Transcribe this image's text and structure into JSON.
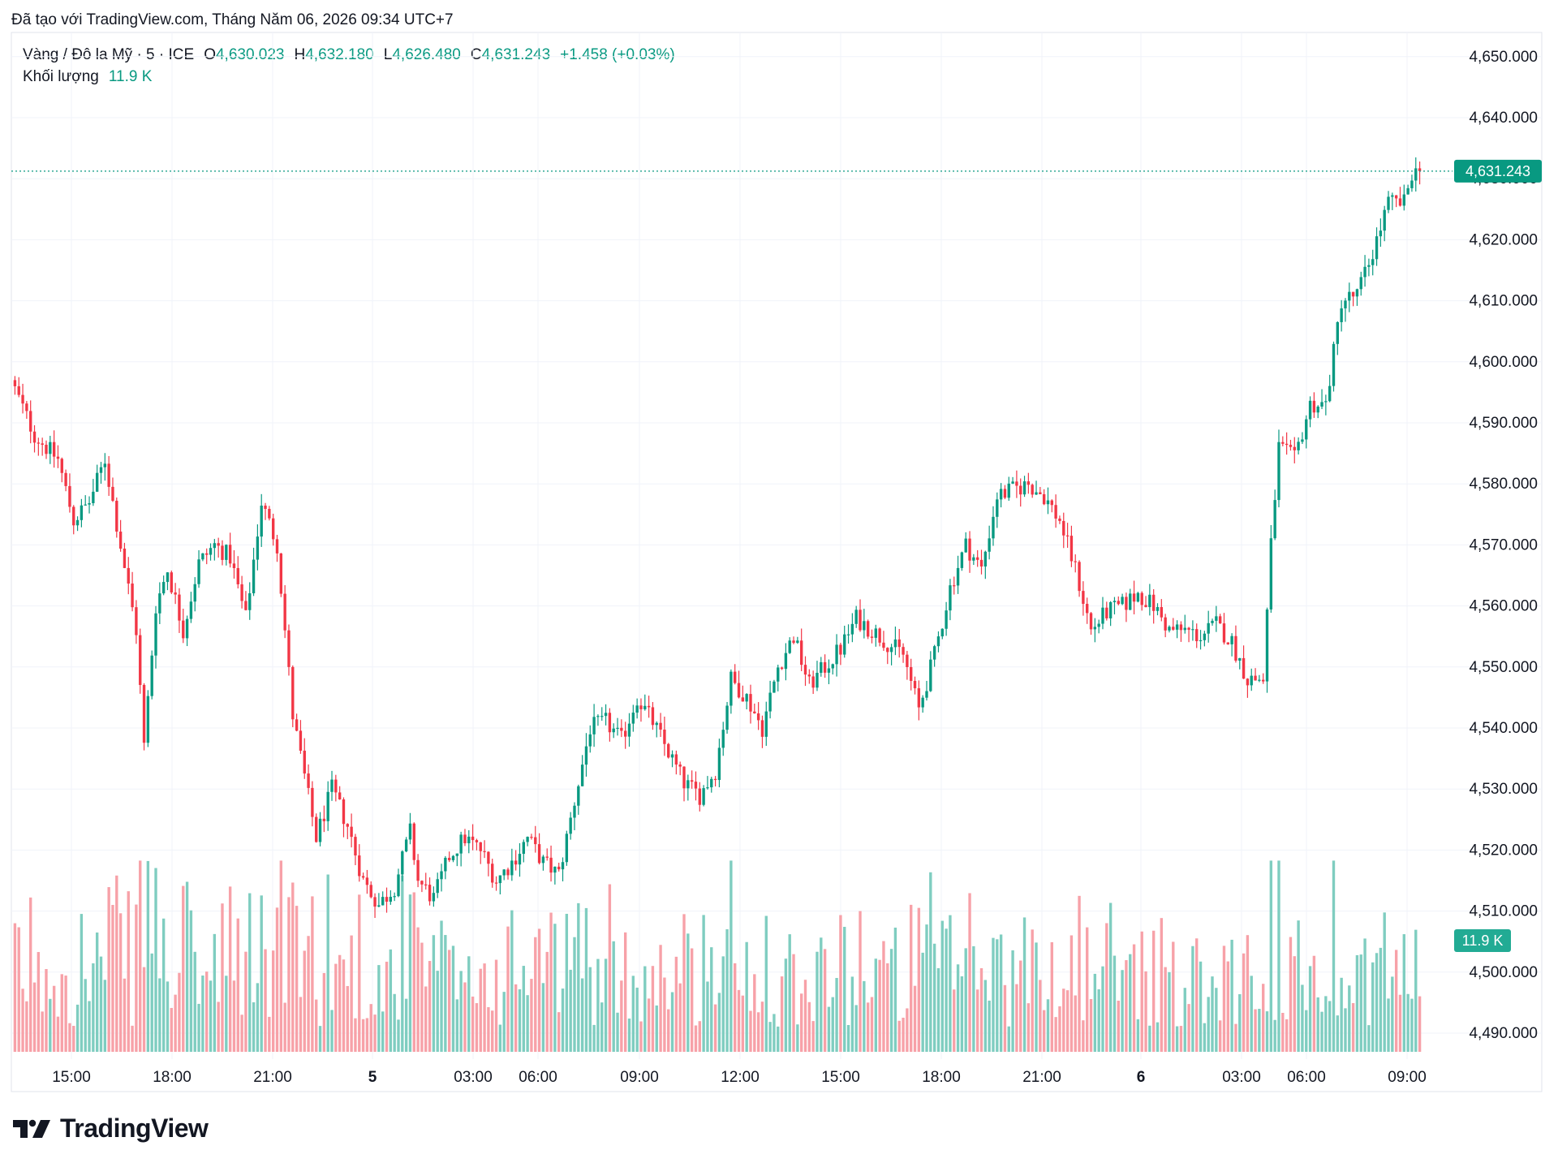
{
  "header": {
    "created_with": "Đã tạo với TradingView.com, Tháng Năm 06, 2026 09:34 UTC+7"
  },
  "legend": {
    "symbol": "Vàng / Đô la Mỹ · 5 · ICE",
    "open_label": "O",
    "open": "4,630.023",
    "high_label": "H",
    "high": "4,632.180",
    "low_label": "L",
    "low": "4,626.480",
    "close_label": "C",
    "close": "4,631.243",
    "change": "+1.458 (+0.03%)",
    "volume_label": "Khối lượng",
    "volume": "11.9 K"
  },
  "price_label": "4,631.243",
  "volume_label": "11.9 K",
  "brand": {
    "name": "TradingView"
  },
  "colors": {
    "up": "#089981",
    "down": "#f23645",
    "up_volume": "#7fcdc0",
    "down_volume": "#f7a1a8",
    "grid": "#f0f3fa",
    "text": "#131722"
  },
  "chart_data": {
    "type": "candlestick",
    "title": "Vàng / Đô la Mỹ · 5 · ICE",
    "y_ticks": [
      "4,490.000",
      "4,500.000",
      "4,510.000",
      "4,520.000",
      "4,530.000",
      "4,540.000",
      "4,550.000",
      "4,560.000",
      "4,570.000",
      "4,580.000",
      "4,590.000",
      "4,600.000",
      "4,610.000",
      "4,620.000",
      "4,630.000",
      "4,640.000",
      "4,650.000"
    ],
    "ylim": [
      4485,
      4653
    ],
    "x_ticks": [
      "15:00",
      "18:00",
      "21:00",
      "5",
      "03:00",
      "06:00",
      "09:00",
      "12:00",
      "15:00",
      "18:00",
      "21:00",
      "6",
      "03:00",
      "06:00",
      "09:00"
    ],
    "last_price": 4631.243,
    "last_volume": "11.9 K",
    "price_path": [
      [
        0,
        4597
      ],
      [
        6,
        4588
      ],
      [
        12,
        4584
      ],
      [
        16,
        4574
      ],
      [
        20,
        4577
      ],
      [
        24,
        4584
      ],
      [
        28,
        4570
      ],
      [
        32,
        4556
      ],
      [
        34,
        4537
      ],
      [
        37,
        4560
      ],
      [
        40,
        4566
      ],
      [
        44,
        4556
      ],
      [
        48,
        4567
      ],
      [
        52,
        4570
      ],
      [
        56,
        4568
      ],
      [
        60,
        4558
      ],
      [
        64,
        4577
      ],
      [
        68,
        4570
      ],
      [
        72,
        4542
      ],
      [
        78,
        4522
      ],
      [
        82,
        4530
      ],
      [
        86,
        4524
      ],
      [
        90,
        4515
      ],
      [
        94,
        4511
      ],
      [
        98,
        4514
      ],
      [
        102,
        4523
      ],
      [
        104,
        4515
      ],
      [
        108,
        4512
      ],
      [
        112,
        4519
      ],
      [
        116,
        4522
      ],
      [
        120,
        4520
      ],
      [
        124,
        4515
      ],
      [
        128,
        4518
      ],
      [
        132,
        4522
      ],
      [
        136,
        4518
      ],
      [
        140,
        4516
      ],
      [
        144,
        4528
      ],
      [
        148,
        4540
      ],
      [
        152,
        4541
      ],
      [
        156,
        4538
      ],
      [
        160,
        4545
      ],
      [
        164,
        4541
      ],
      [
        168,
        4536
      ],
      [
        172,
        4531
      ],
      [
        176,
        4529
      ],
      [
        180,
        4533
      ],
      [
        184,
        4548
      ],
      [
        188,
        4545
      ],
      [
        192,
        4540
      ],
      [
        196,
        4550
      ],
      [
        200,
        4555
      ],
      [
        204,
        4547
      ],
      [
        208,
        4550
      ],
      [
        212,
        4553
      ],
      [
        216,
        4558
      ],
      [
        220,
        4556
      ],
      [
        224,
        4554
      ],
      [
        228,
        4552
      ],
      [
        232,
        4543
      ],
      [
        236,
        4552
      ],
      [
        240,
        4563
      ],
      [
        244,
        4570
      ],
      [
        248,
        4566
      ],
      [
        252,
        4578
      ],
      [
        256,
        4579
      ],
      [
        260,
        4580
      ],
      [
        264,
        4578
      ],
      [
        268,
        4574
      ],
      [
        272,
        4566
      ],
      [
        276,
        4556
      ],
      [
        280,
        4559
      ],
      [
        284,
        4560
      ],
      [
        288,
        4562
      ],
      [
        292,
        4560
      ],
      [
        296,
        4556
      ],
      [
        300,
        4556
      ],
      [
        304,
        4555
      ],
      [
        308,
        4557
      ],
      [
        312,
        4554
      ],
      [
        316,
        4548
      ],
      [
        320,
        4548
      ],
      [
        322,
        4570
      ],
      [
        324,
        4586
      ],
      [
        328,
        4584
      ],
      [
        332,
        4593
      ],
      [
        336,
        4593
      ],
      [
        340,
        4610
      ],
      [
        344,
        4611
      ],
      [
        348,
        4618
      ],
      [
        352,
        4626
      ],
      [
        356,
        4626
      ],
      [
        358,
        4631
      ],
      [
        360,
        4631
      ]
    ],
    "volume_range": [
      5,
      38
    ]
  }
}
